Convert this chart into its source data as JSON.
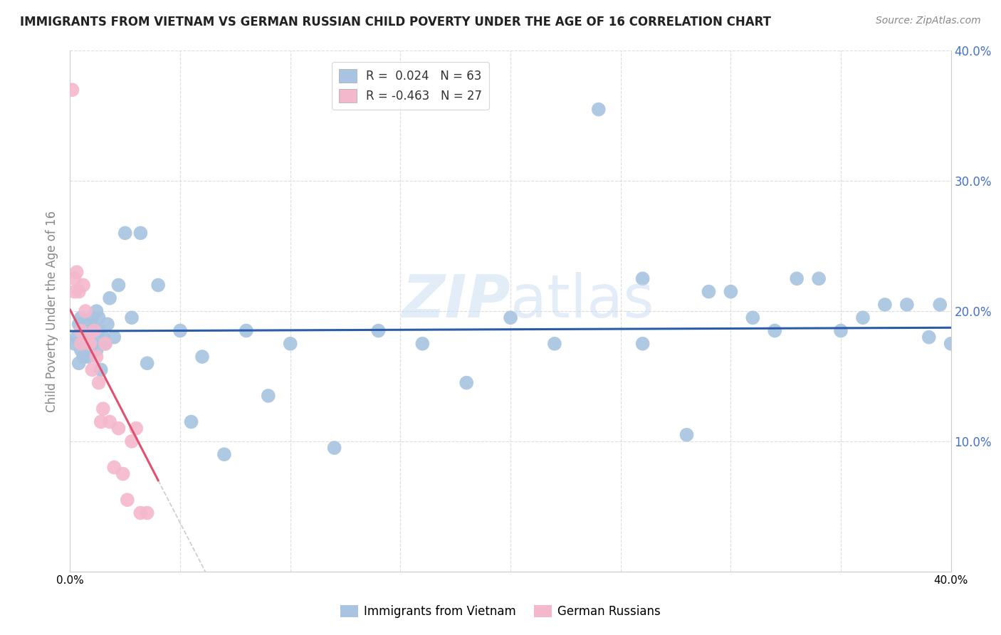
{
  "title": "IMMIGRANTS FROM VIETNAM VS GERMAN RUSSIAN CHILD POVERTY UNDER THE AGE OF 16 CORRELATION CHART",
  "source": "Source: ZipAtlas.com",
  "ylabel": "Child Poverty Under the Age of 16",
  "xlim": [
    0.0,
    0.4
  ],
  "ylim": [
    0.0,
    0.4
  ],
  "blue_color": "#a8c4e0",
  "pink_color": "#f4b8cc",
  "line_blue": "#2a5caa",
  "line_pink": "#e05070",
  "line_gray": "#cccccc",
  "watermark_color": "#c8ddf0",
  "right_tick_color": "#4472c4",
  "title_fontsize": 12,
  "source_fontsize": 10,
  "blue_scatter_x": [
    0.002,
    0.003,
    0.004,
    0.004,
    0.005,
    0.005,
    0.006,
    0.006,
    0.007,
    0.007,
    0.008,
    0.008,
    0.009,
    0.009,
    0.01,
    0.01,
    0.011,
    0.012,
    0.012,
    0.013,
    0.013,
    0.014,
    0.015,
    0.016,
    0.017,
    0.018,
    0.02,
    0.022,
    0.025,
    0.028,
    0.032,
    0.035,
    0.04,
    0.05,
    0.055,
    0.06,
    0.07,
    0.08,
    0.09,
    0.1,
    0.12,
    0.14,
    0.16,
    0.18,
    0.2,
    0.22,
    0.24,
    0.26,
    0.28,
    0.3,
    0.32,
    0.34,
    0.36,
    0.38,
    0.26,
    0.29,
    0.31,
    0.33,
    0.35,
    0.37,
    0.39,
    0.395,
    0.4
  ],
  "blue_scatter_y": [
    0.175,
    0.18,
    0.19,
    0.16,
    0.195,
    0.17,
    0.165,
    0.185,
    0.175,
    0.17,
    0.165,
    0.185,
    0.19,
    0.18,
    0.175,
    0.195,
    0.185,
    0.2,
    0.17,
    0.195,
    0.185,
    0.155,
    0.18,
    0.175,
    0.19,
    0.21,
    0.18,
    0.22,
    0.26,
    0.195,
    0.26,
    0.16,
    0.22,
    0.185,
    0.115,
    0.165,
    0.09,
    0.185,
    0.135,
    0.175,
    0.095,
    0.185,
    0.175,
    0.145,
    0.195,
    0.175,
    0.355,
    0.225,
    0.105,
    0.215,
    0.185,
    0.225,
    0.195,
    0.205,
    0.175,
    0.215,
    0.195,
    0.225,
    0.185,
    0.205,
    0.18,
    0.205,
    0.175
  ],
  "pink_scatter_x": [
    0.001,
    0.002,
    0.002,
    0.003,
    0.004,
    0.005,
    0.005,
    0.006,
    0.007,
    0.008,
    0.009,
    0.01,
    0.011,
    0.012,
    0.013,
    0.014,
    0.015,
    0.016,
    0.018,
    0.02,
    0.022,
    0.024,
    0.026,
    0.028,
    0.03,
    0.032,
    0.035
  ],
  "pink_scatter_y": [
    0.37,
    0.225,
    0.215,
    0.23,
    0.215,
    0.185,
    0.175,
    0.22,
    0.2,
    0.18,
    0.175,
    0.155,
    0.185,
    0.165,
    0.145,
    0.115,
    0.125,
    0.175,
    0.115,
    0.08,
    0.11,
    0.075,
    0.055,
    0.1,
    0.11,
    0.045,
    0.045
  ]
}
